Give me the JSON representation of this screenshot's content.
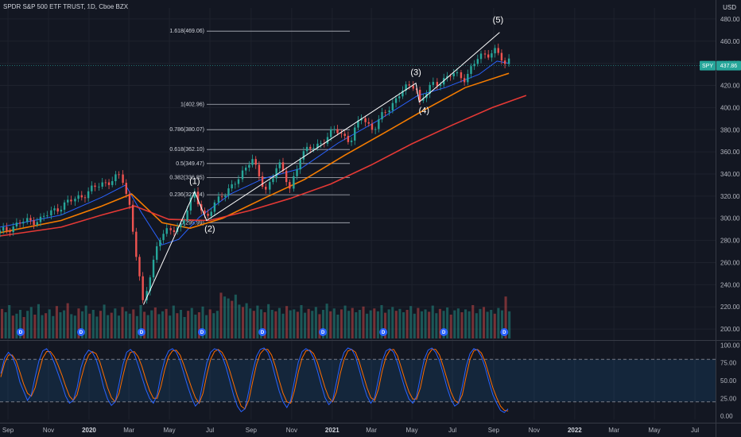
{
  "header": {
    "title": "SPDR S&P 500 ETF TRUST, 1D, Cboe BZX",
    "currency": "USD"
  },
  "price_tag": {
    "symbol": "SPY",
    "value": "437.86"
  },
  "colors": {
    "background": "#131722",
    "up": "#26a69a",
    "down": "#ef5350",
    "ma_fast": "#2962ff",
    "ma_mid": "#f57c00",
    "ma_slow": "#e53935",
    "stoch_k": "#2962ff",
    "stoch_d": "#ff6d00",
    "fib_line": "#b2b5be"
  },
  "chart_data": [
    {
      "type": "line",
      "title": "SPDR S&P 500 ETF TRUST, 1D, Cboe BZX",
      "ylim": [
        190,
        490
      ],
      "y_ticks": [
        "480.00",
        "460.00",
        "440.00",
        "420.00",
        "400.00",
        "380.00",
        "360.00",
        "340.00",
        "320.00",
        "300.00",
        "280.00",
        "260.00",
        "240.00",
        "220.00",
        "200.00"
      ],
      "x_ticks": [
        "Sep",
        "Nov",
        "2020",
        "Mar",
        "May",
        "Jul",
        "Sep",
        "Nov",
        "2021",
        "Mar",
        "May",
        "Jul",
        "Sep",
        "Nov",
        "2022",
        "Mar",
        "May",
        "Jul"
      ],
      "bold_x_ticks": [
        "2020",
        "2021",
        "2022"
      ],
      "x_range": [
        "2019-08-20",
        "2022-08-01"
      ],
      "series": [
        {
          "key": "price",
          "x": [
            "2019-08-20",
            "2019-09-20",
            "2019-10-20",
            "2019-11-20",
            "2019-12-20",
            "2020-01-20",
            "2020-02-19",
            "2020-03-03",
            "2020-03-23",
            "2020-04-15",
            "2020-05-20",
            "2020-06-08",
            "2020-06-26",
            "2020-07-20",
            "2020-08-15",
            "2020-09-02",
            "2020-09-23",
            "2020-10-12",
            "2020-10-30",
            "2020-11-15",
            "2020-12-10",
            "2021-01-07",
            "2021-01-29",
            "2021-02-15",
            "2021-03-04",
            "2021-03-25",
            "2021-04-15",
            "2021-05-07",
            "2021-05-12",
            "2021-06-01",
            "2021-07-01",
            "2021-07-20",
            "2021-08-10",
            "2021-09-02",
            "2021-09-10",
            "2021-09-20",
            "2021-09-24"
          ],
          "values": [
            287,
            296,
            299,
            311,
            320,
            331,
            338,
            310,
            222,
            282,
            295,
            322,
            300,
            322,
            335,
            357,
            322,
            352,
            326,
            358,
            366,
            380,
            370,
            392,
            380,
            398,
            414,
            422,
            404,
            420,
            430,
            427,
            445,
            452,
            447,
            437,
            443
          ]
        },
        {
          "key": "ma_fast",
          "name": "",
          "x": [
            "2019-08-20",
            "2019-11-20",
            "2020-01-20",
            "2020-02-25",
            "2020-03-20",
            "2020-04-20",
            "2020-05-15",
            "2020-06-15",
            "2020-08-01",
            "2020-09-20",
            "2020-11-15",
            "2021-01-10",
            "2021-03-10",
            "2021-05-10",
            "2021-06-20",
            "2021-08-10",
            "2021-09-06",
            "2021-09-24"
          ],
          "values": [
            292,
            303,
            319,
            330,
            305,
            276,
            281,
            301,
            322,
            336,
            345,
            368,
            388,
            411,
            418,
            430,
            442,
            440
          ]
        },
        {
          "key": "ma_mid",
          "name": "",
          "x": [
            "2019-08-20",
            "2019-11-20",
            "2020-01-20",
            "2020-03-05",
            "2020-04-20",
            "2020-06-01",
            "2020-07-20",
            "2020-09-20",
            "2020-11-20",
            "2021-01-20",
            "2021-03-20",
            "2021-05-20",
            "2021-07-20",
            "2021-09-24"
          ],
          "values": [
            287,
            298,
            311,
            322,
            296,
            291,
            300,
            318,
            335,
            357,
            377,
            398,
            418,
            431
          ]
        },
        {
          "key": "ma_slow",
          "name": "",
          "x": [
            "2019-08-20",
            "2019-11-20",
            "2020-01-20",
            "2020-03-10",
            "2020-04-30",
            "2020-06-30",
            "2020-08-30",
            "2020-10-30",
            "2020-12-30",
            "2021-02-28",
            "2021-04-30",
            "2021-06-30",
            "2021-08-30",
            "2021-10-20"
          ],
          "values": [
            284,
            292,
            303,
            311,
            299,
            298,
            307,
            318,
            331,
            348,
            367,
            384,
            400,
            411
          ]
        }
      ],
      "volume": [
        62,
        55,
        70,
        48,
        52,
        60,
        45,
        58,
        66,
        50,
        72,
        49,
        53,
        61,
        47,
        68,
        55,
        59,
        74,
        51,
        48,
        63,
        57,
        69,
        52,
        60,
        46,
        58,
        71,
        49,
        54,
        63,
        48,
        66,
        57,
        52,
        61,
        47,
        70,
        56,
        49,
        59,
        65,
        51,
        57,
        62,
        48,
        69,
        53,
        60,
        45,
        58,
        64,
        50,
        55,
        67,
        49,
        61,
        53,
        58,
        96,
        88,
        84,
        79,
        92,
        71,
        66,
        74,
        63,
        58,
        69,
        61,
        55,
        72,
        60,
        57,
        64,
        52,
        68,
        59,
        61,
        56,
        70,
        54,
        62,
        58,
        66,
        51,
        60,
        73,
        57,
        63,
        50,
        61,
        69,
        58,
        64,
        55,
        60,
        67,
        52,
        59,
        63,
        57,
        70,
        54,
        61,
        66,
        58,
        62,
        55,
        60,
        68,
        52,
        64,
        57,
        61,
        56,
        69,
        53,
        62,
        58,
        65,
        50,
        59,
        63,
        55,
        61,
        57,
        70,
        53,
        62,
        66,
        56,
        60,
        52,
        64,
        59,
        88,
        57
      ],
      "wave_labels": [
        "(1)",
        "(2)",
        "(3)",
        "(4)",
        "(5)"
      ],
      "dividend_marker_label": "D",
      "dividend_dates": [
        "2019-09-20",
        "2019-12-20",
        "2020-03-20",
        "2020-06-19",
        "2020-09-18",
        "2020-12-18",
        "2021-03-19",
        "2021-06-18",
        "2021-09-17"
      ],
      "fibonacci": [
        {
          "label": "1.618(469.06)",
          "value": 469.06
        },
        {
          "label": "1(402.96)",
          "value": 402.96
        },
        {
          "label": "0.786(380.07)",
          "value": 380.07
        },
        {
          "label": "0.618(362.10)",
          "value": 362.1
        },
        {
          "label": "0.5(349.47)",
          "value": 349.47
        },
        {
          "label": "0.382(336.85)",
          "value": 336.85
        },
        {
          "label": "0.236(321.24)",
          "value": 321.24
        },
        {
          "label": "0(295.99)",
          "value": 295.99
        }
      ]
    },
    {
      "type": "line",
      "title": "",
      "ylim": [
        -5,
        105
      ],
      "y_ticks": [
        "100.00",
        "75.00",
        "50.00",
        "25.00",
        "0.00"
      ],
      "bands": [
        20,
        80
      ],
      "series": [
        {
          "key": "stoch_k",
          "name": ""
        },
        {
          "key": "stoch_d",
          "name": ""
        }
      ],
      "stoch_k": [
        60,
        82,
        90,
        84,
        70,
        48,
        35,
        22,
        30,
        55,
        78,
        92,
        95,
        88,
        75,
        60,
        45,
        28,
        18,
        22,
        40,
        68,
        85,
        93,
        90,
        80,
        62,
        40,
        24,
        15,
        20,
        45,
        72,
        90,
        94,
        88,
        72,
        55,
        38,
        25,
        18,
        30,
        58,
        80,
        92,
        95,
        90,
        78,
        60,
        42,
        26,
        14,
        20,
        48,
        75,
        90,
        95,
        93,
        85,
        70,
        50,
        30,
        14,
        6,
        10,
        35,
        62,
        84,
        94,
        96,
        90,
        76,
        55,
        35,
        20,
        12,
        22,
        50,
        76,
        91,
        95,
        92,
        82,
        64,
        44,
        26,
        16,
        22,
        48,
        74,
        90,
        96,
        94,
        84,
        65,
        45,
        28,
        18,
        26,
        52,
        78,
        92,
        95,
        90,
        75,
        56,
        38,
        24,
        18,
        28,
        55,
        80,
        93,
        96,
        90,
        78,
        60,
        40,
        24,
        14,
        18,
        42,
        70,
        88,
        95,
        93,
        84,
        68,
        48,
        30,
        18,
        8,
        5,
        10
      ],
      "stoch_d": [
        55,
        75,
        86,
        86,
        78,
        62,
        45,
        32,
        28,
        40,
        62,
        82,
        91,
        91,
        84,
        72,
        58,
        42,
        28,
        22,
        30,
        52,
        72,
        86,
        91,
        88,
        76,
        58,
        40,
        26,
        20,
        32,
        56,
        78,
        90,
        91,
        84,
        70,
        52,
        36,
        25,
        25,
        42,
        66,
        84,
        92,
        93,
        86,
        72,
        56,
        40,
        26,
        18,
        32,
        58,
        80,
        91,
        94,
        90,
        80,
        64,
        46,
        28,
        14,
        10,
        22,
        48,
        72,
        88,
        94,
        94,
        86,
        70,
        50,
        32,
        20,
        18,
        36,
        62,
        82,
        92,
        93,
        88,
        76,
        58,
        40,
        26,
        20,
        34,
        60,
        80,
        92,
        94,
        90,
        76,
        58,
        40,
        26,
        22,
        38,
        64,
        84,
        93,
        94,
        85,
        68,
        50,
        34,
        24,
        24,
        40,
        66,
        86,
        94,
        94,
        86,
        70,
        52,
        34,
        22,
        18,
        30,
        56,
        80,
        92,
        94,
        89,
        76,
        58,
        40,
        26,
        14,
        8,
        7
      ]
    }
  ]
}
